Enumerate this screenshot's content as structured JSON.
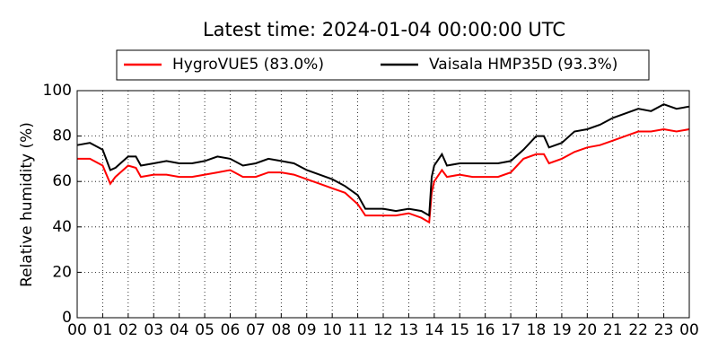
{
  "chart_data": {
    "type": "line",
    "title": "Latest time: 2024-01-04 00:00:00 UTC",
    "y_label": "Relative humidity (%)",
    "x": [
      0,
      0.5,
      1,
      1.3,
      1.5,
      2,
      2.3,
      2.5,
      3,
      3.5,
      4,
      4.5,
      5,
      5.5,
      6,
      6.5,
      7,
      7.5,
      8,
      8.5,
      9,
      9.5,
      10,
      10.5,
      11,
      11.3,
      11.5,
      12,
      12.5,
      13,
      13.5,
      13.8,
      13.9,
      14,
      14.3,
      14.5,
      15,
      15.5,
      16,
      16.5,
      17,
      17.5,
      18,
      18.3,
      18.5,
      19,
      19.5,
      20,
      20.5,
      21,
      21.5,
      22,
      22.5,
      23,
      23.5,
      24
    ],
    "series": [
      {
        "name": "HygroVUE5 (83.0%)",
        "color": "#ff0000",
        "values": [
          70,
          70,
          67,
          59,
          62,
          67,
          66,
          62,
          63,
          63,
          62,
          62,
          63,
          64,
          65,
          62,
          62,
          64,
          64,
          63,
          61,
          59,
          57,
          55,
          50,
          45,
          45,
          45,
          45,
          46,
          44,
          42,
          55,
          60,
          65,
          62,
          63,
          62,
          62,
          62,
          64,
          70,
          72,
          72,
          68,
          70,
          73,
          75,
          76,
          78,
          80,
          82,
          82,
          83,
          82,
          83
        ]
      },
      {
        "name": "Vaisala HMP35D (93.3%)",
        "color": "#000000",
        "values": [
          76,
          77,
          74,
          65,
          66,
          71,
          71,
          67,
          68,
          69,
          68,
          68,
          69,
          71,
          70,
          67,
          68,
          70,
          69,
          68,
          65,
          63,
          61,
          58,
          54,
          48,
          48,
          48,
          47,
          48,
          47,
          45,
          62,
          67,
          72,
          67,
          68,
          68,
          68,
          68,
          69,
          74,
          80,
          80,
          75,
          77,
          82,
          83,
          85,
          88,
          90,
          92,
          91,
          94,
          92,
          93
        ]
      }
    ],
    "xlim": [
      0,
      24
    ],
    "xticks": [
      {
        "value": 0,
        "label": "00"
      },
      {
        "value": 1,
        "label": "01"
      },
      {
        "value": 2,
        "label": "02"
      },
      {
        "value": 3,
        "label": "03"
      },
      {
        "value": 4,
        "label": "04"
      },
      {
        "value": 5,
        "label": "05"
      },
      {
        "value": 6,
        "label": "06"
      },
      {
        "value": 7,
        "label": "07"
      },
      {
        "value": 8,
        "label": "08"
      },
      {
        "value": 9,
        "label": "09"
      },
      {
        "value": 10,
        "label": "10"
      },
      {
        "value": 11,
        "label": "11"
      },
      {
        "value": 12,
        "label": "12"
      },
      {
        "value": 13,
        "label": "13"
      },
      {
        "value": 14,
        "label": "14"
      },
      {
        "value": 15,
        "label": "15"
      },
      {
        "value": 16,
        "label": "16"
      },
      {
        "value": 17,
        "label": "17"
      },
      {
        "value": 18,
        "label": "18"
      },
      {
        "value": 19,
        "label": "19"
      },
      {
        "value": 20,
        "label": "20"
      },
      {
        "value": 21,
        "label": "21"
      },
      {
        "value": 22,
        "label": "22"
      },
      {
        "value": 23,
        "label": "23"
      },
      {
        "value": 24,
        "label": "00"
      }
    ],
    "ylim": [
      0,
      100
    ],
    "yticks": [
      0,
      20,
      40,
      60,
      80,
      100
    ],
    "grid": true,
    "legend": "top"
  }
}
